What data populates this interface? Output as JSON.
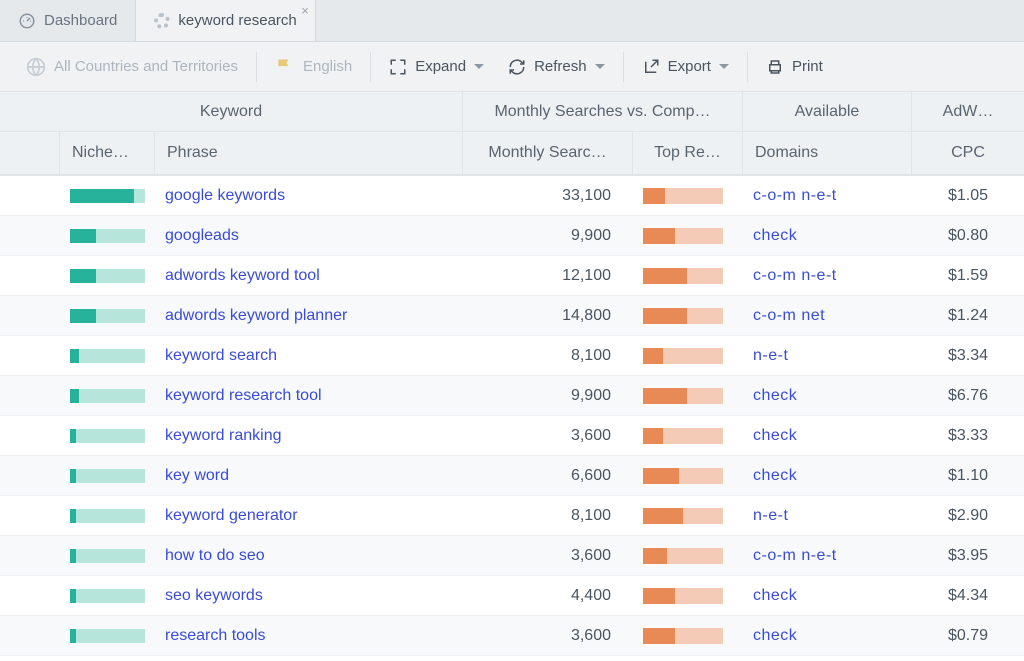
{
  "tabs": [
    {
      "label": "Dashboard",
      "icon": "dashboard",
      "active": false
    },
    {
      "label": "keyword research",
      "icon": "spinner",
      "active": true,
      "closable": true
    }
  ],
  "toolbar": {
    "filter_country": "All Countries and Territories",
    "filter_language": "English",
    "expand": "Expand",
    "refresh": "Refresh",
    "export": "Export",
    "print": "Print"
  },
  "group_headers": [
    "Keyword",
    "Monthly Searches vs. Comp…",
    "Available",
    "AdW…"
  ],
  "sub_headers": {
    "niche": "Niche…",
    "phrase": "Phrase",
    "monthly": "Monthly Searc…",
    "top": "Top Re…",
    "domains": "Domains",
    "cpc": "CPC"
  },
  "niche_bar": {
    "track_color": "#b6e6db",
    "fill_color": "#26b29b"
  },
  "top_bar": {
    "track_color": "#f4cbb6",
    "fill_color": "#e88a56"
  },
  "rows": [
    {
      "niche_pct": 85,
      "phrase": "google keywords",
      "monthly": "33,100",
      "top_pct": 28,
      "domains": "c-o-m n-e-t",
      "cpc": "$1.05"
    },
    {
      "niche_pct": 35,
      "phrase": "googleads",
      "monthly": "9,900",
      "top_pct": 40,
      "domains": "check",
      "cpc": "$0.80"
    },
    {
      "niche_pct": 35,
      "phrase": "adwords keyword tool",
      "monthly": "12,100",
      "top_pct": 55,
      "domains": "c-o-m n-e-t",
      "cpc": "$1.59"
    },
    {
      "niche_pct": 35,
      "phrase": "adwords keyword planner",
      "monthly": "14,800",
      "top_pct": 55,
      "domains": "c-o-m net",
      "cpc": "$1.24"
    },
    {
      "niche_pct": 12,
      "phrase": "keyword search",
      "monthly": "8,100",
      "top_pct": 25,
      "domains": "n-e-t",
      "cpc": "$3.34"
    },
    {
      "niche_pct": 12,
      "phrase": "keyword research tool",
      "monthly": "9,900",
      "top_pct": 55,
      "domains": "check",
      "cpc": "$6.76"
    },
    {
      "niche_pct": 8,
      "phrase": "keyword ranking",
      "monthly": "3,600",
      "top_pct": 25,
      "domains": "check",
      "cpc": "$3.33"
    },
    {
      "niche_pct": 8,
      "phrase": "key word",
      "monthly": "6,600",
      "top_pct": 45,
      "domains": "check",
      "cpc": "$1.10"
    },
    {
      "niche_pct": 8,
      "phrase": "keyword generator",
      "monthly": "8,100",
      "top_pct": 50,
      "domains": "n-e-t",
      "cpc": "$2.90"
    },
    {
      "niche_pct": 8,
      "phrase": "how to do seo",
      "monthly": "3,600",
      "top_pct": 30,
      "domains": "c-o-m n-e-t",
      "cpc": "$3.95"
    },
    {
      "niche_pct": 8,
      "phrase": "seo keywords",
      "monthly": "4,400",
      "top_pct": 40,
      "domains": "check",
      "cpc": "$4.34"
    },
    {
      "niche_pct": 8,
      "phrase": "research tools",
      "monthly": "3,600",
      "top_pct": 40,
      "domains": "check",
      "cpc": "$0.79"
    }
  ]
}
